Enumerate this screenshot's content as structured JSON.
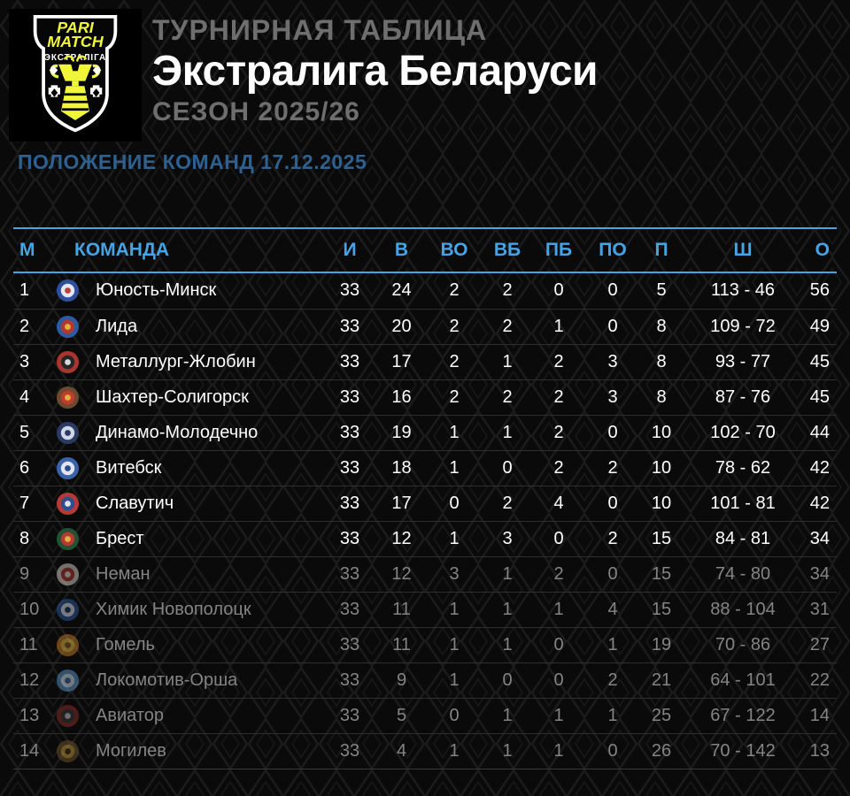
{
  "logo": {
    "line1": "PARI",
    "line2": "MATCH",
    "line3": "ЭКСТРАЛІГА"
  },
  "header": {
    "kicker": "ТУРНИРНАЯ ТАБЛИЦА",
    "title": "Экстралига Беларуси",
    "season": "СЕЗОН 2025/26",
    "subtitle": "ПОЛОЖЕНИЕ КОМАНД 17.12.2025"
  },
  "colors": {
    "accent_blue": "#45a4e6",
    "subtitle_blue": "#2e6190",
    "muted_gray": "#6e6e6e",
    "dimmed_text": "#848484",
    "row_divider": "#2e2e2e",
    "brand_yellow": "#f1f63a",
    "background": "#0a0a0a"
  },
  "table": {
    "columns": [
      {
        "key": "pos",
        "label": "М"
      },
      {
        "key": "team",
        "label": "КОМАНДА"
      },
      {
        "key": "gp",
        "label": "И"
      },
      {
        "key": "w",
        "label": "В"
      },
      {
        "key": "otw",
        "label": "ВО"
      },
      {
        "key": "sow",
        "label": "ВБ"
      },
      {
        "key": "sol",
        "label": "ПБ"
      },
      {
        "key": "otl",
        "label": "ПО"
      },
      {
        "key": "l",
        "label": "П"
      },
      {
        "key": "goals",
        "label": "Ш"
      },
      {
        "key": "pts",
        "label": "О"
      }
    ],
    "rows": [
      {
        "pos": "1",
        "team": "Юность-Минск",
        "gp": "33",
        "w": "24",
        "otw": "2",
        "sow": "2",
        "sol": "0",
        "otl": "0",
        "l": "5",
        "goals": "113 - 46",
        "pts": "56",
        "dimmed": false,
        "logo": {
          "c1": "#2e4f9e",
          "c2": "#e3e7f0",
          "c3": "#c23b3b"
        }
      },
      {
        "pos": "2",
        "team": "Лида",
        "gp": "33",
        "w": "20",
        "otw": "2",
        "sow": "2",
        "sol": "1",
        "otl": "0",
        "l": "8",
        "goals": "109 - 72",
        "pts": "49",
        "dimmed": false,
        "logo": {
          "c1": "#2d5aa0",
          "c2": "#b7372e",
          "c3": "#e0b63a"
        }
      },
      {
        "pos": "3",
        "team": "Металлург-Жлобин",
        "gp": "33",
        "w": "17",
        "otw": "2",
        "sow": "1",
        "sol": "2",
        "otl": "3",
        "l": "8",
        "goals": "93 - 77",
        "pts": "45",
        "dimmed": false,
        "logo": {
          "c1": "#a93530",
          "c2": "#262626",
          "c3": "#d8d8d8"
        }
      },
      {
        "pos": "4",
        "team": "Шахтер-Солигорск",
        "gp": "33",
        "w": "16",
        "otw": "2",
        "sow": "2",
        "sol": "2",
        "otl": "3",
        "l": "8",
        "goals": "87 - 76",
        "pts": "45",
        "dimmed": false,
        "logo": {
          "c1": "#6b4a2d",
          "c2": "#c23b30",
          "c3": "#e0b63a"
        }
      },
      {
        "pos": "5",
        "team": "Динамо-Молодечно",
        "gp": "33",
        "w": "19",
        "otw": "1",
        "sow": "1",
        "sol": "2",
        "otl": "0",
        "l": "10",
        "goals": "102 - 70",
        "pts": "44",
        "dimmed": false,
        "logo": {
          "c1": "#2b3a63",
          "c2": "#cfd6e6",
          "c3": "#2b3a63"
        }
      },
      {
        "pos": "6",
        "team": "Витебск",
        "gp": "33",
        "w": "18",
        "otw": "1",
        "sow": "0",
        "sol": "2",
        "otl": "2",
        "l": "10",
        "goals": "78 - 62",
        "pts": "42",
        "dimmed": false,
        "logo": {
          "c1": "#3b62a8",
          "c2": "#dfe6f2",
          "c3": "#2b4a8c"
        }
      },
      {
        "pos": "7",
        "team": "Славутич",
        "gp": "33",
        "w": "17",
        "otw": "0",
        "sow": "2",
        "sol": "4",
        "otl": "0",
        "l": "10",
        "goals": "101 - 81",
        "pts": "42",
        "dimmed": false,
        "logo": {
          "c1": "#b53a35",
          "c2": "#2d4f92",
          "c3": "#e3e3e3"
        }
      },
      {
        "pos": "8",
        "team": "Брест",
        "gp": "33",
        "w": "12",
        "otw": "1",
        "sow": "3",
        "sol": "0",
        "otl": "2",
        "l": "15",
        "goals": "84 - 81",
        "pts": "34",
        "dimmed": false,
        "logo": {
          "c1": "#225231",
          "c2": "#b53a35",
          "c3": "#e0b63a"
        }
      },
      {
        "pos": "9",
        "team": "Неман",
        "gp": "33",
        "w": "12",
        "otw": "3",
        "sow": "1",
        "sol": "2",
        "otl": "0",
        "l": "15",
        "goals": "74 - 80",
        "pts": "34",
        "dimmed": true,
        "logo": {
          "c1": "#ddd6cc",
          "c2": "#b53a35",
          "c3": "#f0ece4"
        }
      },
      {
        "pos": "10",
        "team": "Химик Новополоцк",
        "gp": "33",
        "w": "11",
        "otw": "1",
        "sow": "1",
        "sol": "1",
        "otl": "4",
        "l": "15",
        "goals": "88 - 104",
        "pts": "31",
        "dimmed": true,
        "logo": {
          "c1": "#2d5aa0",
          "c2": "#e3e9f2",
          "c3": "#1d3a6e"
        }
      },
      {
        "pos": "11",
        "team": "Гомель",
        "gp": "33",
        "w": "11",
        "otw": "1",
        "sow": "1",
        "sol": "0",
        "otl": "1",
        "l": "19",
        "goals": "70 - 86",
        "pts": "27",
        "dimmed": true,
        "logo": {
          "c1": "#c77f28",
          "c2": "#e8c44a",
          "c3": "#8a4a1f"
        }
      },
      {
        "pos": "12",
        "team": "Локомотив-Орша",
        "gp": "33",
        "w": "9",
        "otw": "1",
        "sow": "0",
        "sol": "0",
        "otl": "2",
        "l": "21",
        "goals": "64 - 101",
        "pts": "22",
        "dimmed": true,
        "logo": {
          "c1": "#5b98cf",
          "c2": "#dbe8f4",
          "c3": "#3a6ea8"
        }
      },
      {
        "pos": "13",
        "team": "Авиатор",
        "gp": "33",
        "w": "5",
        "otw": "0",
        "sow": "1",
        "sol": "1",
        "otl": "1",
        "l": "25",
        "goals": "67 - 122",
        "pts": "14",
        "dimmed": true,
        "logo": {
          "c1": "#8c2f2a",
          "c2": "#3a3a3a",
          "c3": "#d0d0d0"
        }
      },
      {
        "pos": "14",
        "team": "Могилев",
        "gp": "33",
        "w": "4",
        "otw": "1",
        "sow": "1",
        "sol": "1",
        "otl": "0",
        "l": "26",
        "goals": "70 - 142",
        "pts": "13",
        "dimmed": true,
        "logo": {
          "c1": "#6e532c",
          "c2": "#c9a23f",
          "c3": "#3f2f1a"
        }
      }
    ]
  },
  "chart_data": {
    "type": "table",
    "title": "ТУРНИРНАЯ ТАБЛИЦА — Экстралига Беларуси — СЕЗОН 2025/26 — ПОЛОЖЕНИЕ КОМАНД 17.12.2025",
    "columns": [
      "М",
      "КОМАНДА",
      "И",
      "В",
      "ВО",
      "ВБ",
      "ПБ",
      "ПО",
      "П",
      "Ш",
      "О"
    ],
    "rows": [
      [
        1,
        "Юность-Минск",
        33,
        24,
        2,
        2,
        0,
        0,
        5,
        "113 - 46",
        56
      ],
      [
        2,
        "Лида",
        33,
        20,
        2,
        2,
        1,
        0,
        8,
        "109 - 72",
        49
      ],
      [
        3,
        "Металлург-Жлобин",
        33,
        17,
        2,
        1,
        2,
        3,
        8,
        "93 - 77",
        45
      ],
      [
        4,
        "Шахтер-Солигорск",
        33,
        16,
        2,
        2,
        2,
        3,
        8,
        "87 - 76",
        45
      ],
      [
        5,
        "Динамо-Молодечно",
        33,
        19,
        1,
        1,
        2,
        0,
        10,
        "102 - 70",
        44
      ],
      [
        6,
        "Витебск",
        33,
        18,
        1,
        0,
        2,
        2,
        10,
        "78 - 62",
        42
      ],
      [
        7,
        "Славутич",
        33,
        17,
        0,
        2,
        4,
        0,
        10,
        "101 - 81",
        42
      ],
      [
        8,
        "Брест",
        33,
        12,
        1,
        3,
        0,
        2,
        15,
        "84 - 81",
        34
      ],
      [
        9,
        "Неман",
        33,
        12,
        3,
        1,
        2,
        0,
        15,
        "74 - 80",
        34
      ],
      [
        10,
        "Химик Новополоцк",
        33,
        11,
        1,
        1,
        1,
        4,
        15,
        "88 - 104",
        31
      ],
      [
        11,
        "Гомель",
        33,
        11,
        1,
        1,
        0,
        1,
        19,
        "70 - 86",
        27
      ],
      [
        12,
        "Локомотив-Орша",
        33,
        9,
        1,
        0,
        0,
        2,
        21,
        "64 - 101",
        22
      ],
      [
        13,
        "Авиатор",
        33,
        5,
        0,
        1,
        1,
        1,
        25,
        "67 - 122",
        14
      ],
      [
        14,
        "Могилев",
        33,
        4,
        1,
        1,
        1,
        0,
        26,
        "70 - 142",
        13
      ]
    ],
    "notes": "Rows 1-8 shown in white (playoff zone), rows 9-14 dimmed gray"
  }
}
